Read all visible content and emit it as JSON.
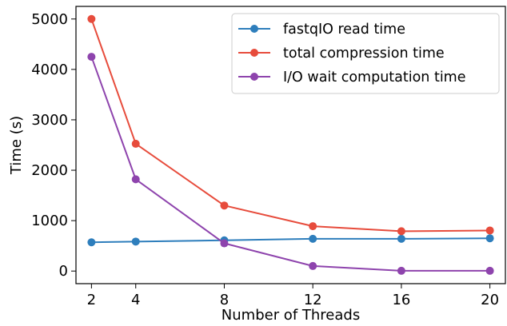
{
  "chart_data": {
    "type": "line",
    "title": "",
    "xlabel": "Number of Threads",
    "ylabel": "Time (s)",
    "x": [
      2,
      4,
      8,
      12,
      16,
      20
    ],
    "x_ticks": [
      2,
      4,
      8,
      12,
      16,
      20
    ],
    "y_ticks": [
      0,
      1000,
      2000,
      3000,
      4000,
      5000
    ],
    "xlim": [
      1.3,
      20.7
    ],
    "ylim": [
      -250,
      5250
    ],
    "grid": false,
    "legend_position": "top-right",
    "series": [
      {
        "name": "fastqIO read time",
        "color": "#2e7ebc",
        "values": [
          570,
          585,
          610,
          640,
          640,
          650
        ]
      },
      {
        "name": "total compression time",
        "color": "#e74c3c",
        "values": [
          5000,
          2525,
          1300,
          890,
          790,
          805
        ]
      },
      {
        "name": "I/O wait computation time",
        "color": "#8e44ad",
        "values": [
          4250,
          1820,
          550,
          100,
          5,
          5
        ]
      }
    ]
  }
}
